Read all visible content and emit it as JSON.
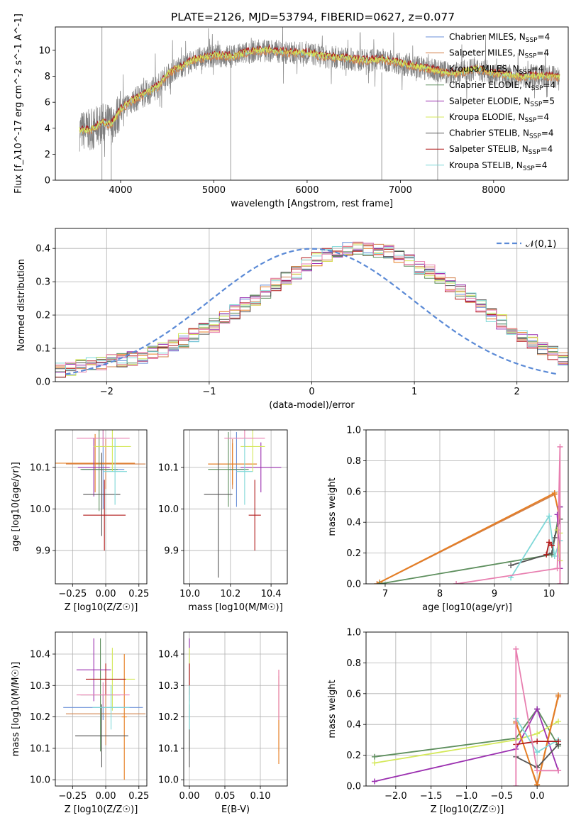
{
  "figure": {
    "title": "PLATE=2126, MJD=53794, FIBERID=0627, z=0.077"
  },
  "colors": {
    "Chabrier MILES": "#6a8fd8",
    "Salpeter MILES": "#d2804a",
    "Kroupa MILES": "#e67e22",
    "Chabrier ELODIE": "#5e8f5e",
    "Salpeter ELODIE": "#9b30b0",
    "Kroupa ELODIE": "#d4e85a",
    "Chabrier STELIB": "#555555",
    "Salpeter STELIB": "#b01818",
    "Kroupa STELIB": "#7fd8d8",
    "data": "#808080",
    "normal": "#5b8ad6",
    "pink": "#e87fb0"
  },
  "chart_data": [
    {
      "id": "spectrum",
      "type": "line",
      "xlabel": "wavelength [Angstrom, rest frame]",
      "ylabel": "Flux [f_λ10^-17 erg cm^-2 s^-1 A^-1]",
      "xlim": [
        3300,
        8800
      ],
      "ylim": [
        0,
        11.8
      ],
      "xticks": [
        "4000",
        "5000",
        "6000",
        "7000",
        "8000"
      ],
      "yticks": [
        "0",
        "2",
        "4",
        "6",
        "8",
        "10"
      ],
      "legend": [
        {
          "name": "Chabrier MILES",
          "nssp": "4"
        },
        {
          "name": "Salpeter MILES",
          "nssp": "4"
        },
        {
          "name": "Kroupa MILES",
          "nssp": "4"
        },
        {
          "name": "Chabrier ELODIE",
          "nssp": "4"
        },
        {
          "name": "Salpeter ELODIE",
          "nssp": "5"
        },
        {
          "name": "Kroupa ELODIE",
          "nssp": "4"
        },
        {
          "name": "Chabrier STELIB",
          "nssp": "4"
        },
        {
          "name": "Salpeter STELIB",
          "nssp": "4"
        },
        {
          "name": "Kroupa STELIB",
          "nssp": "4"
        }
      ],
      "legend_loc": "upper right",
      "continuum": {
        "x": [
          3550,
          3700,
          3800,
          3900,
          4000,
          4100,
          4200,
          4300,
          4400,
          4500,
          4600,
          4700,
          4800,
          4900,
          5000,
          5200,
          5400,
          5600,
          5800,
          6000,
          6200,
          6400,
          6600,
          6800,
          7000,
          7200,
          7400,
          7600,
          7800,
          8000,
          8200,
          8400,
          8600,
          8700
        ],
        "y": [
          3.8,
          3.9,
          4.4,
          4.3,
          5.4,
          6.0,
          6.4,
          6.8,
          7.2,
          8.1,
          8.6,
          8.9,
          9.3,
          9.4,
          9.6,
          9.5,
          9.9,
          10.0,
          9.8,
          9.8,
          9.5,
          9.4,
          9.2,
          9.3,
          9.0,
          8.7,
          8.4,
          8.2,
          8.6,
          8.2,
          8.0,
          8.0,
          8.0,
          7.9
        ]
      }
    },
    {
      "id": "residuals",
      "type": "bar",
      "xlabel": "(data-model)/error",
      "ylabel": "Normed distribution",
      "xlim": [
        -2.5,
        2.5
      ],
      "ylim": [
        0,
        0.46
      ],
      "xticks": [
        "−2",
        "−1",
        "0",
        "1",
        "2"
      ],
      "yticks": [
        "0.0",
        "0.1",
        "0.2",
        "0.3",
        "0.4"
      ],
      "grid": true,
      "normal_label": "𝒩(0,1)",
      "bin_width": 0.1,
      "bins_start": -2.5,
      "base_values": [
        0.035,
        0.04,
        0.045,
        0.05,
        0.055,
        0.06,
        0.065,
        0.07,
        0.075,
        0.085,
        0.095,
        0.11,
        0.125,
        0.14,
        0.155,
        0.17,
        0.19,
        0.21,
        0.23,
        0.25,
        0.27,
        0.29,
        0.31,
        0.33,
        0.35,
        0.37,
        0.38,
        0.39,
        0.4,
        0.4,
        0.4,
        0.395,
        0.39,
        0.375,
        0.36,
        0.345,
        0.33,
        0.31,
        0.29,
        0.27,
        0.25,
        0.225,
        0.2,
        0.18,
        0.16,
        0.14,
        0.12,
        0.1,
        0.085,
        0.07
      ]
    },
    {
      "id": "age_vs_Z",
      "type": "scatter",
      "xlabel": "Z [log10(Z/Z☉)]",
      "ylabel": "age  [log10(age/yr)]",
      "xlim": [
        -0.38,
        0.31
      ],
      "ylim": [
        9.82,
        10.19
      ],
      "xticks": [
        -0.25,
        0.0,
        0.25
      ],
      "xticklabels": [
        "−0.25",
        "0.00",
        "0.25"
      ],
      "yticks": [
        9.9,
        10.0,
        10.1
      ],
      "yticklabels": [
        "9.9",
        "10.0",
        "10.1"
      ],
      "points": [
        {
          "s": "Chabrier MILES",
          "x": -0.02,
          "y": 10.095,
          "xe": 0.16,
          "ye": 0.095
        },
        {
          "s": "Salpeter MILES",
          "x": 0.0,
          "y": 10.108,
          "xe": 0.3,
          "ye": 0.06
        },
        {
          "s": "Kroupa MILES",
          "x": -0.08,
          "y": 10.11,
          "xe": 0.3,
          "ye": 0.07
        },
        {
          "s": "Chabrier ELODIE",
          "x": -0.05,
          "y": 10.095,
          "xe": 0.14,
          "ye": 0.1
        },
        {
          "s": "Salpeter ELODIE",
          "x": -0.09,
          "y": 10.1,
          "xe": 0.12,
          "ye": 0.07
        },
        {
          "s": "Kroupa ELODIE",
          "x": 0.05,
          "y": 10.15,
          "xe": 0.14,
          "ye": 0.06
        },
        {
          "s": "Chabrier STELIB",
          "x": -0.03,
          "y": 10.035,
          "xe": 0.14,
          "ye": 0.1
        },
        {
          "s": "Salpeter STELIB",
          "x": -0.01,
          "y": 9.985,
          "xe": 0.16,
          "ye": 0.085
        },
        {
          "s": "pink",
          "x": -0.02,
          "y": 10.17,
          "xe": 0.2,
          "ye": 0.02
        },
        {
          "s": "Kroupa STELIB",
          "x": 0.07,
          "y": 10.09,
          "xe": 0.09,
          "ye": 0.08
        }
      ]
    },
    {
      "id": "age_vs_mass",
      "type": "scatter",
      "xlabel": "mass [log10(M/M☉)]",
      "ylabel": "",
      "xlim": [
        9.97,
        10.48
      ],
      "ylim": [
        9.82,
        10.19
      ],
      "xticks": [
        10.0,
        10.2,
        10.4
      ],
      "xticklabels": [
        "10.0",
        "10.2",
        "10.4"
      ],
      "yticks": [
        9.9,
        10.0,
        10.1
      ],
      "yticklabels": [
        "9.9",
        "10.0",
        "10.1"
      ],
      "points": [
        {
          "s": "Chabrier MILES",
          "x": 10.23,
          "y": 10.095,
          "xe": 0.04,
          "ye": 0.09
        },
        {
          "s": "Salpeter MILES",
          "x": 10.21,
          "y": 10.108,
          "xe": 0.12,
          "ye": 0.06
        },
        {
          "s": "Kroupa MILES",
          "x": 10.21,
          "y": 10.108,
          "xe": 0.12,
          "ye": 0.05
        },
        {
          "s": "Chabrier ELODIE",
          "x": 10.19,
          "y": 10.095,
          "xe": 0.1,
          "ye": 0.09
        },
        {
          "s": "Salpeter ELODIE",
          "x": 10.35,
          "y": 10.1,
          "xe": 0.1,
          "ye": 0.06
        },
        {
          "s": "Kroupa ELODIE",
          "x": 10.31,
          "y": 10.15,
          "xe": 0.06,
          "ye": 0.06
        },
        {
          "s": "Chabrier STELIB",
          "x": 10.14,
          "y": 10.035,
          "xe": 0.07,
          "ye": 0.2
        },
        {
          "s": "Salpeter STELIB",
          "x": 10.32,
          "y": 9.985,
          "xe": 0.03,
          "ye": 0.085
        },
        {
          "s": "pink",
          "x": 10.27,
          "y": 10.17,
          "xe": 0.1,
          "ye": 0.02
        },
        {
          "s": "Kroupa STELIB",
          "x": 10.27,
          "y": 10.09,
          "xe": 0.04,
          "ye": 0.08
        }
      ]
    },
    {
      "id": "weight_vs_age",
      "type": "line",
      "xlabel": "age  [log10(age/yr)]",
      "ylabel": "mass weight",
      "xlim": [
        6.65,
        10.35
      ],
      "ylim": [
        0,
        1.0
      ],
      "xticks": [
        7,
        8,
        9,
        10
      ],
      "xticklabels": [
        "7",
        "8",
        "9",
        "10"
      ],
      "yticks": [
        0,
        0.2,
        0.4,
        0.6,
        0.8,
        1.0
      ],
      "yticklabels": [
        "0.0",
        "0.2",
        "0.4",
        "0.6",
        "0.8",
        "1.0"
      ],
      "grid": true,
      "series": [
        {
          "s": "Salpeter MILES",
          "x": [
            6.85,
            10.1,
            10.2
          ],
          "y": [
            0.0,
            0.58,
            0.42
          ]
        },
        {
          "s": "Kroupa MILES",
          "x": [
            6.9,
            10.1,
            10.2
          ],
          "y": [
            0.01,
            0.59,
            0.42
          ]
        },
        {
          "s": "Chabrier ELODIE",
          "x": [
            6.9,
            10.05,
            10.2
          ],
          "y": [
            0.0,
            0.19,
            0.5
          ]
        },
        {
          "s": "Chabrier STELIB",
          "x": [
            9.3,
            10.05,
            10.1,
            10.2
          ],
          "y": [
            0.12,
            0.2,
            0.3,
            0.42
          ]
        },
        {
          "s": "Kroupa STELIB",
          "x": [
            9.3,
            10.0,
            10.1,
            10.2
          ],
          "y": [
            0.04,
            0.44,
            0.18,
            0.28
          ]
        },
        {
          "s": "Salpeter STELIB",
          "x": [
            9.95,
            10.0,
            10.05
          ],
          "y": [
            0.19,
            0.27,
            0.25
          ]
        },
        {
          "s": "Salpeter ELODIE",
          "x": [
            10.15,
            10.2,
            10.2
          ],
          "y": [
            0.45,
            0.1,
            0.5
          ]
        },
        {
          "s": "Kroupa ELODIE",
          "x": [
            10.15,
            10.2,
            10.2
          ],
          "y": [
            0.35,
            0.15,
            0.33
          ]
        },
        {
          "s": "pink",
          "x": [
            8.3,
            10.15,
            10.2,
            10.2
          ],
          "y": [
            0.0,
            0.1,
            0.89,
            0.0
          ]
        }
      ]
    },
    {
      "id": "mass_vs_Z",
      "type": "scatter",
      "xlabel": "Z [log10(Z/Z☉)]",
      "ylabel": "mass [log10(M/M☉)]",
      "xlim": [
        -0.38,
        0.31
      ],
      "ylim": [
        9.98,
        10.47
      ],
      "xticks": [
        -0.25,
        0.0,
        0.25
      ],
      "xticklabels": [
        "−0.25",
        "0.00",
        "0.25"
      ],
      "yticks": [
        10.0,
        10.1,
        10.2,
        10.3,
        10.4
      ],
      "yticklabels": [
        "10.0",
        "10.1",
        "10.2",
        "10.3",
        "10.4"
      ],
      "points": [
        {
          "s": "Chabrier MILES",
          "x": -0.02,
          "y": 10.23,
          "xe": 0.3,
          "ye": 0.04
        },
        {
          "s": "Salpeter MILES",
          "x": 0.0,
          "y": 10.21,
          "xe": 0.3,
          "ye": 0.1
        },
        {
          "s": "Kroupa MILES",
          "x": 0.14,
          "y": 10.2,
          "xe": 0.02,
          "ye": 0.2
        },
        {
          "s": "Chabrier ELODIE",
          "x": -0.04,
          "y": 10.27,
          "xe": 0.15,
          "ye": 0.18
        },
        {
          "s": "Salpeter ELODIE",
          "x": -0.09,
          "y": 10.35,
          "xe": 0.13,
          "ye": 0.1
        },
        {
          "s": "Kroupa ELODIE",
          "x": 0.05,
          "y": 10.32,
          "xe": 0.17,
          "ye": 0.1
        },
        {
          "s": "Chabrier STELIB",
          "x": -0.03,
          "y": 10.14,
          "xe": 0.2,
          "ye": 0.1
        },
        {
          "s": "Salpeter STELIB",
          "x": -0.0,
          "y": 10.32,
          "xe": 0.15,
          "ye": 0.05
        },
        {
          "s": "pink",
          "x": -0.02,
          "y": 10.27,
          "xe": 0.2,
          "ye": 0.04
        },
        {
          "s": "Kroupa STELIB",
          "x": 0.04,
          "y": 10.23,
          "xe": 0.14,
          "ye": 0.07
        }
      ]
    },
    {
      "id": "mass_vs_ebv",
      "type": "scatter",
      "xlabel": "E(B-V)",
      "ylabel": "",
      "xlim": [
        -0.008,
        0.138
      ],
      "ylim": [
        9.98,
        10.47
      ],
      "xticks": [
        0.0,
        0.05,
        0.1
      ],
      "xticklabels": [
        "0.00",
        "0.05",
        "0.10"
      ],
      "yticks": [
        10.0,
        10.1,
        10.2,
        10.3,
        10.4
      ],
      "yticklabels": [
        "10.0",
        "10.1",
        "10.2",
        "10.3",
        "10.4"
      ],
      "points": [
        {
          "s": "Chabrier MILES",
          "x": 0.0,
          "y": 10.23,
          "xe": 0,
          "ye": 0.04
        },
        {
          "s": "Salpeter MILES",
          "x": 0.126,
          "y": 10.21,
          "xe": 0,
          "ye": 0.12
        },
        {
          "s": "Kroupa MILES",
          "x": 0.126,
          "y": 10.2,
          "xe": 0,
          "ye": 0.15
        },
        {
          "s": "Chabrier ELODIE",
          "x": 0.0,
          "y": 10.27,
          "xe": 0,
          "ye": 0.18
        },
        {
          "s": "Salpeter ELODIE",
          "x": 0.0,
          "y": 10.35,
          "xe": 0,
          "ye": 0.1
        },
        {
          "s": "Kroupa ELODIE",
          "x": 0.0,
          "y": 10.32,
          "xe": 0,
          "ye": 0.1
        },
        {
          "s": "Chabrier STELIB",
          "x": 0.0,
          "y": 10.14,
          "xe": 0,
          "ye": 0.1
        },
        {
          "s": "Salpeter STELIB",
          "x": 0.0,
          "y": 10.32,
          "xe": 0,
          "ye": 0.05
        },
        {
          "s": "pink",
          "x": 0.126,
          "y": 10.27,
          "xe": 0,
          "ye": 0.08
        },
        {
          "s": "Kroupa STELIB",
          "x": 0.0,
          "y": 10.23,
          "xe": 0,
          "ye": 0.07
        }
      ]
    },
    {
      "id": "weight_vs_Z",
      "type": "line",
      "xlabel": "Z [log10(Z/Z☉)]",
      "ylabel": "mass weight",
      "xlim": [
        -2.42,
        0.44
      ],
      "ylim": [
        0,
        1.0
      ],
      "xticks": [
        -2.0,
        -1.5,
        -1.0,
        -0.5,
        0.0
      ],
      "xticklabels": [
        "−2.0",
        "−1.5",
        "−1.0",
        "−0.5",
        "0.0"
      ],
      "yticks": [
        0,
        0.2,
        0.4,
        0.6,
        0.8,
        1.0
      ],
      "yticklabels": [
        "0.0",
        "0.2",
        "0.4",
        "0.6",
        "0.8",
        "1.0"
      ],
      "grid": true,
      "series": [
        {
          "s": "Chabrier ELODIE",
          "x": [
            -2.3,
            -0.3,
            0.0,
            0.3
          ],
          "y": [
            0.19,
            0.31,
            0.5,
            0.26
          ]
        },
        {
          "s": "Kroupa ELODIE",
          "x": [
            -2.3,
            -0.3,
            0.0,
            0.3
          ],
          "y": [
            0.15,
            0.3,
            0.34,
            0.42
          ]
        },
        {
          "s": "Salpeter ELODIE",
          "x": [
            -2.3,
            -0.3,
            0.0,
            0.3
          ],
          "y": [
            0.03,
            0.24,
            0.5,
            0.1
          ]
        },
        {
          "s": "Salpeter MILES",
          "x": [
            -0.3,
            0.0,
            0.3
          ],
          "y": [
            0.42,
            0.0,
            0.58
          ]
        },
        {
          "s": "Kroupa MILES",
          "x": [
            -0.3,
            0.0,
            0.3
          ],
          "y": [
            0.41,
            0.01,
            0.59
          ]
        },
        {
          "s": "Chabrier STELIB",
          "x": [
            -0.3,
            0.0,
            0.3
          ],
          "y": [
            0.19,
            0.12,
            0.27
          ]
        },
        {
          "s": "Kroupa STELIB",
          "x": [
            -0.3,
            0.0,
            0.3
          ],
          "y": [
            0.44,
            0.22,
            0.3
          ]
        },
        {
          "s": "Salpeter STELIB",
          "x": [
            -0.3,
            0.0,
            0.3
          ],
          "y": [
            0.27,
            0.29,
            0.29
          ]
        },
        {
          "s": "pink",
          "x": [
            -0.3,
            -0.3,
            0.0,
            0.3
          ],
          "y": [
            0.0,
            0.89,
            0.1,
            0.1
          ]
        }
      ]
    }
  ]
}
